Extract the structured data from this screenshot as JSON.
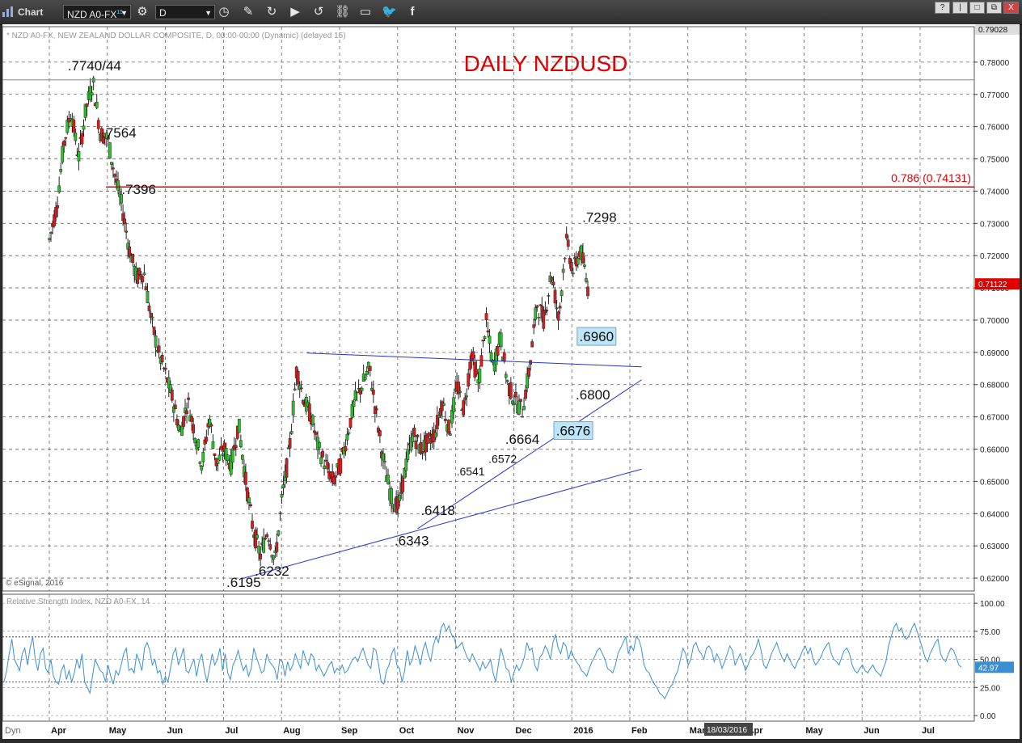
{
  "toolbar": {
    "app_label": "Chart",
    "symbol": "NZD A0-FX",
    "symbol_sup": "15",
    "interval": "D",
    "window_buttons": [
      "?",
      "|",
      "□",
      "⧉",
      "X"
    ]
  },
  "chart_data": [
    {
      "type": "candlestick",
      "title": "DAILY NZDUSD",
      "subtitle": "* NZD A0-FX, NEW ZEALAND DOLLAR COMPOSITE, D, 00:00-00:00 (Dynamic) (delayed 15)",
      "copyright": "© eSignal, 2016",
      "x_labels": [
        "Apr",
        "May",
        "Jun",
        "Jul",
        "Aug",
        "Sep",
        "Oct",
        "Nov",
        "Dec",
        "2016",
        "Feb",
        "Mar",
        "Apr",
        "May",
        "Jun",
        "Jul"
      ],
      "y_ticks": [
        "0.78000",
        "0.77000",
        "0.76000",
        "0.75000",
        "0.74000",
        "0.73000",
        "0.72000",
        "0.71000",
        "0.70000",
        "0.69000",
        "0.68000",
        "0.67000",
        "0.66000",
        "0.65000",
        "0.64000",
        "0.63000",
        "0.62000"
      ],
      "ylim": [
        0.616,
        0.791
      ],
      "top_value": "0.79028",
      "last_price": "0.71122",
      "date_badge": "18/03/2016",
      "fib_line": {
        "value": 0.74131,
        "label": "0.786 (0.74131)",
        "color": "#e00000"
      },
      "flat_line": 0.7745,
      "price_path": [
        [
          0.0,
          0.725
        ],
        [
          0.5,
          0.735
        ],
        [
          1.0,
          0.755
        ],
        [
          1.5,
          0.765
        ],
        [
          2.0,
          0.75
        ],
        [
          2.5,
          0.765
        ],
        [
          3.0,
          0.774
        ],
        [
          3.5,
          0.758
        ],
        [
          4.0,
          0.7564
        ],
        [
          4.5,
          0.745
        ],
        [
          5.0,
          0.735
        ],
        [
          5.5,
          0.722
        ],
        [
          6.0,
          0.713
        ],
        [
          6.5,
          0.715
        ],
        [
          7.0,
          0.7
        ],
        [
          7.5,
          0.69
        ],
        [
          8.0,
          0.683
        ],
        [
          8.5,
          0.675
        ],
        [
          9.0,
          0.665
        ],
        [
          9.5,
          0.675
        ],
        [
          10.0,
          0.665
        ],
        [
          10.5,
          0.655
        ],
        [
          11.0,
          0.67
        ],
        [
          11.5,
          0.655
        ],
        [
          12.0,
          0.66
        ],
        [
          12.5,
          0.655
        ],
        [
          13.0,
          0.668
        ],
        [
          13.5,
          0.65
        ],
        [
          14.0,
          0.635
        ],
        [
          14.5,
          0.627
        ],
        [
          15.0,
          0.635
        ],
        [
          15.5,
          0.625
        ],
        [
          16.0,
          0.645
        ],
        [
          16.5,
          0.66
        ],
        [
          17.0,
          0.685
        ],
        [
          17.5,
          0.675
        ],
        [
          18.0,
          0.67
        ],
        [
          18.5,
          0.66
        ],
        [
          19.0,
          0.655
        ],
        [
          19.5,
          0.65
        ],
        [
          20.0,
          0.655
        ],
        [
          20.5,
          0.665
        ],
        [
          21.0,
          0.675
        ],
        [
          21.5,
          0.68
        ],
        [
          22.0,
          0.685
        ],
        [
          22.5,
          0.67
        ],
        [
          23.0,
          0.655
        ],
        [
          23.5,
          0.645
        ],
        [
          24.0,
          0.642
        ],
        [
          24.5,
          0.655
        ],
        [
          25.0,
          0.665
        ],
        [
          25.5,
          0.66
        ],
        [
          26.0,
          0.662
        ],
        [
          26.5,
          0.665
        ],
        [
          27.0,
          0.675
        ],
        [
          27.5,
          0.665
        ],
        [
          28.0,
          0.68
        ],
        [
          28.5,
          0.672
        ],
        [
          29.0,
          0.69
        ],
        [
          29.5,
          0.68
        ],
        [
          30.0,
          0.7
        ],
        [
          30.5,
          0.685
        ],
        [
          31.0,
          0.695
        ],
        [
          31.5,
          0.68
        ],
        [
          32.0,
          0.675
        ],
        [
          32.5,
          0.672
        ],
        [
          33.0,
          0.685
        ],
        [
          33.5,
          0.705
        ],
        [
          34.0,
          0.7
        ],
        [
          34.5,
          0.715
        ],
        [
          35.0,
          0.7
        ],
        [
          35.5,
          0.725
        ],
        [
          36.0,
          0.715
        ],
        [
          36.5,
          0.722
        ],
        [
          37.0,
          0.71
        ]
      ],
      "annotations": [
        {
          "text": ".7740/44",
          "x": 3.1,
          "y": 0.7775,
          "size": 17
        },
        {
          "text": ".7564",
          "x": 4.8,
          "y": 0.7566,
          "size": 17
        },
        {
          "text": ".7396",
          "x": 6.15,
          "y": 0.7391,
          "size": 17
        },
        {
          "text": ".6195",
          "x": 13.35,
          "y": 0.6172,
          "size": 17
        },
        {
          "text": ".6232",
          "x": 15.3,
          "y": 0.6208,
          "size": 17
        },
        {
          "text": ".6343",
          "x": 24.9,
          "y": 0.6302,
          "size": 17
        },
        {
          "text": ".6418",
          "x": 26.7,
          "y": 0.6396,
          "size": 17
        },
        {
          "text": ".6541",
          "x": 28.95,
          "y": 0.6519,
          "size": 14
        },
        {
          "text": ".6572",
          "x": 31.15,
          "y": 0.6557,
          "size": 14
        },
        {
          "text": ".6664",
          "x": 32.5,
          "y": 0.6616,
          "size": 17
        },
        {
          "text": ".6800",
          "x": 37.35,
          "y": 0.6754,
          "size": 17
        },
        {
          "text": ".7298",
          "x": 37.8,
          "y": 0.7305,
          "size": 17
        }
      ],
      "boxed_labels": [
        {
          "text": ".6960",
          "x": 37.6,
          "y": 0.6942
        },
        {
          "text": ".6676",
          "x": 36.0,
          "y": 0.665
        }
      ],
      "trendlines": [
        {
          "x1": 17.7,
          "y1": 0.6898,
          "x2": 40.7,
          "y2": 0.6855
        },
        {
          "x1": 13.2,
          "y1": 0.6198,
          "x2": 40.7,
          "y2": 0.6538
        },
        {
          "x1": 25.3,
          "y1": 0.6353,
          "x2": 40.7,
          "y2": 0.6815
        }
      ]
    },
    {
      "type": "line",
      "title": "Relative Strength Index, NZD A0-FX, 14",
      "y_ticks": [
        "100.00",
        "75.00",
        "50.00",
        "25.00",
        "0.00"
      ],
      "ylim": [
        -5,
        108
      ],
      "last_value": "42.97",
      "values": [
        30,
        40,
        55,
        68,
        50,
        45,
        40,
        55,
        60,
        45,
        60,
        70,
        50,
        40,
        55,
        60,
        42,
        38,
        50,
        35,
        30,
        28,
        40,
        45,
        32,
        40,
        30,
        38,
        50,
        42,
        55,
        30,
        25,
        20,
        35,
        50,
        45,
        40,
        38,
        30,
        45,
        35,
        28,
        40,
        36,
        45,
        55,
        60,
        40,
        42,
        38,
        55,
        48,
        40,
        60,
        65,
        58,
        45,
        50,
        38,
        40,
        28,
        35,
        30,
        42,
        55,
        60,
        45,
        52,
        60,
        40,
        38,
        45,
        50,
        35,
        48,
        55,
        40,
        30,
        42,
        55,
        45,
        50,
        60,
        40,
        55,
        38,
        32,
        45,
        50,
        58,
        48,
        40,
        45,
        35,
        42,
        60,
        52,
        45,
        38,
        40,
        55,
        48,
        45,
        42,
        32,
        50,
        48,
        35,
        48,
        40,
        45,
        55,
        48,
        42,
        58,
        50,
        45,
        55,
        52,
        40,
        45,
        40,
        35,
        40,
        45,
        48,
        38,
        42,
        40,
        45,
        38,
        40,
        45,
        50,
        52,
        48,
        55,
        60,
        52,
        45,
        42,
        60,
        58,
        45,
        30,
        28,
        40,
        45,
        55,
        60,
        45,
        42,
        30,
        40,
        58,
        45,
        50,
        62,
        55,
        45,
        58,
        65,
        55,
        48,
        62,
        70,
        65,
        78,
        82,
        75,
        80,
        72,
        70,
        60,
        62,
        65,
        58,
        52,
        48,
        55,
        50,
        45,
        40,
        48,
        42,
        45,
        50,
        38,
        30,
        45,
        60,
        52,
        42,
        40,
        30,
        38,
        45,
        40,
        45,
        52,
        65,
        58,
        60,
        45,
        40,
        52,
        55,
        62,
        58,
        50,
        65,
        72,
        60,
        55,
        65,
        62,
        50,
        58,
        52,
        48,
        45,
        40,
        38,
        35,
        42,
        48,
        52,
        58,
        60,
        55,
        50,
        42,
        40,
        38,
        45,
        55,
        60,
        65,
        70,
        55,
        62,
        58,
        70,
        68,
        60,
        45,
        40,
        38,
        32,
        28,
        25,
        20,
        18,
        15,
        20,
        25,
        28,
        35,
        40,
        50,
        60,
        55,
        45,
        50,
        62,
        65,
        58,
        55,
        50,
        60,
        62,
        58,
        48,
        55,
        50,
        42,
        48,
        55,
        62,
        58,
        45,
        50,
        55,
        48,
        40,
        45,
        52,
        55,
        60,
        68,
        58,
        45,
        42,
        48,
        55,
        60,
        65,
        58,
        52,
        48,
        55,
        50,
        45,
        42,
        48,
        52,
        58,
        62,
        55,
        60,
        50,
        45,
        48,
        52,
        58,
        62,
        65,
        55,
        50,
        48,
        45,
        52,
        58,
        60,
        55,
        45,
        40,
        38,
        42,
        45,
        40,
        38,
        42,
        45,
        40,
        38,
        35,
        42,
        48,
        62,
        70,
        78,
        82,
        75,
        78,
        70,
        68,
        72,
        78,
        82,
        75,
        68,
        60,
        52,
        48,
        55,
        60,
        65,
        68,
        55,
        50,
        48,
        55,
        60,
        58,
        52,
        45,
        43
      ],
      "reference_lines": [
        30,
        70
      ],
      "color": "#3b8fd0"
    }
  ],
  "bottom_axis": {
    "corner_label": "Dyn"
  }
}
